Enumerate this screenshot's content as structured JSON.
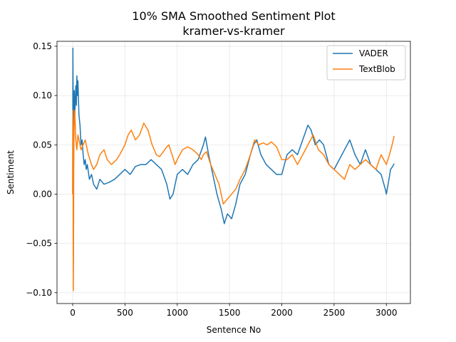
{
  "chart_data": {
    "type": "line",
    "title": "10% SMA Smoothed Sentiment Plot",
    "subtitle": "kramer-vs-kramer",
    "xlabel": "Sentence No",
    "ylabel": "Sentiment",
    "xlim": [
      -150,
      3230
    ],
    "ylim": [
      -0.111,
      0.155
    ],
    "xticks": [
      0,
      500,
      1000,
      1500,
      2000,
      2500,
      3000
    ],
    "xtick_labels": [
      "0",
      "500",
      "1000",
      "1500",
      "2000",
      "2500",
      "3000"
    ],
    "yticks": [
      -0.1,
      -0.05,
      0.0,
      0.05,
      0.1,
      0.15
    ],
    "ytick_labels": [
      "−0.10",
      "−0.05",
      "0.00",
      "0.05",
      "0.10",
      "0.15"
    ],
    "grid": true,
    "legend_position": "upper right",
    "series": [
      {
        "name": "VADER",
        "color": "#1f77b4",
        "points": [
          [
            0,
            0.0
          ],
          [
            2,
            0.148
          ],
          [
            5,
            0.09
          ],
          [
            8,
            0.02
          ],
          [
            11,
            0.065
          ],
          [
            15,
            0.105
          ],
          [
            20,
            0.08
          ],
          [
            25,
            0.095
          ],
          [
            30,
            0.11
          ],
          [
            35,
            0.09
          ],
          [
            40,
            0.12
          ],
          [
            45,
            0.1
          ],
          [
            50,
            0.115
          ],
          [
            60,
            0.08
          ],
          [
            70,
            0.07
          ],
          [
            80,
            0.05
          ],
          [
            90,
            0.055
          ],
          [
            100,
            0.04
          ],
          [
            110,
            0.03
          ],
          [
            120,
            0.035
          ],
          [
            130,
            0.025
          ],
          [
            140,
            0.03
          ],
          [
            160,
            0.015
          ],
          [
            180,
            0.02
          ],
          [
            200,
            0.01
          ],
          [
            230,
            0.005
          ],
          [
            260,
            0.015
          ],
          [
            300,
            0.01
          ],
          [
            350,
            0.012
          ],
          [
            400,
            0.015
          ],
          [
            450,
            0.02
          ],
          [
            500,
            0.025
          ],
          [
            550,
            0.02
          ],
          [
            600,
            0.028
          ],
          [
            650,
            0.03
          ],
          [
            700,
            0.03
          ],
          [
            750,
            0.035
          ],
          [
            800,
            0.03
          ],
          [
            850,
            0.025
          ],
          [
            900,
            0.01
          ],
          [
            930,
            -0.005
          ],
          [
            960,
            0.0
          ],
          [
            1000,
            0.02
          ],
          [
            1050,
            0.025
          ],
          [
            1100,
            0.02
          ],
          [
            1150,
            0.03
          ],
          [
            1200,
            0.035
          ],
          [
            1250,
            0.05
          ],
          [
            1270,
            0.058
          ],
          [
            1300,
            0.04
          ],
          [
            1340,
            0.02
          ],
          [
            1380,
            0.0
          ],
          [
            1420,
            -0.015
          ],
          [
            1450,
            -0.03
          ],
          [
            1480,
            -0.02
          ],
          [
            1520,
            -0.025
          ],
          [
            1560,
            -0.01
          ],
          [
            1600,
            0.01
          ],
          [
            1650,
            0.02
          ],
          [
            1700,
            0.04
          ],
          [
            1730,
            0.05
          ],
          [
            1760,
            0.055
          ],
          [
            1800,
            0.04
          ],
          [
            1850,
            0.03
          ],
          [
            1900,
            0.025
          ],
          [
            1950,
            0.02
          ],
          [
            2000,
            0.02
          ],
          [
            2050,
            0.04
          ],
          [
            2100,
            0.045
          ],
          [
            2150,
            0.04
          ],
          [
            2200,
            0.055
          ],
          [
            2250,
            0.07
          ],
          [
            2280,
            0.065
          ],
          [
            2320,
            0.05
          ],
          [
            2360,
            0.055
          ],
          [
            2400,
            0.05
          ],
          [
            2450,
            0.03
          ],
          [
            2500,
            0.025
          ],
          [
            2550,
            0.035
          ],
          [
            2600,
            0.045
          ],
          [
            2650,
            0.055
          ],
          [
            2700,
            0.04
          ],
          [
            2750,
            0.03
          ],
          [
            2800,
            0.045
          ],
          [
            2850,
            0.03
          ],
          [
            2900,
            0.025
          ],
          [
            2950,
            0.02
          ],
          [
            2990,
            0.005
          ],
          [
            3000,
            0.0
          ],
          [
            3020,
            0.012
          ],
          [
            3040,
            0.025
          ],
          [
            3060,
            0.028
          ],
          [
            3075,
            0.031
          ]
        ]
      },
      {
        "name": "TextBlob",
        "color": "#ff7f0e",
        "points": [
          [
            0,
            0.0
          ],
          [
            2,
            0.085
          ],
          [
            4,
            0.03
          ],
          [
            6,
            -0.098
          ],
          [
            8,
            -0.06
          ],
          [
            10,
            0.02
          ],
          [
            12,
            0.055
          ],
          [
            15,
            0.075
          ],
          [
            20,
            0.085
          ],
          [
            25,
            0.07
          ],
          [
            30,
            0.055
          ],
          [
            40,
            0.045
          ],
          [
            50,
            0.06
          ],
          [
            60,
            0.055
          ],
          [
            80,
            0.045
          ],
          [
            100,
            0.05
          ],
          [
            120,
            0.055
          ],
          [
            150,
            0.04
          ],
          [
            180,
            0.03
          ],
          [
            200,
            0.025
          ],
          [
            230,
            0.03
          ],
          [
            260,
            0.04
          ],
          [
            300,
            0.045
          ],
          [
            330,
            0.035
          ],
          [
            370,
            0.03
          ],
          [
            420,
            0.035
          ],
          [
            450,
            0.04
          ],
          [
            500,
            0.05
          ],
          [
            530,
            0.06
          ],
          [
            560,
            0.065
          ],
          [
            600,
            0.055
          ],
          [
            640,
            0.06
          ],
          [
            680,
            0.072
          ],
          [
            720,
            0.065
          ],
          [
            760,
            0.05
          ],
          [
            800,
            0.04
          ],
          [
            830,
            0.038
          ],
          [
            860,
            0.042
          ],
          [
            900,
            0.048
          ],
          [
            920,
            0.05
          ],
          [
            950,
            0.04
          ],
          [
            980,
            0.03
          ],
          [
            1000,
            0.035
          ],
          [
            1050,
            0.045
          ],
          [
            1100,
            0.048
          ],
          [
            1150,
            0.045
          ],
          [
            1200,
            0.04
          ],
          [
            1230,
            0.035
          ],
          [
            1250,
            0.04
          ],
          [
            1280,
            0.043
          ],
          [
            1320,
            0.03
          ],
          [
            1360,
            0.02
          ],
          [
            1400,
            0.01
          ],
          [
            1440,
            -0.01
          ],
          [
            1480,
            -0.005
          ],
          [
            1520,
            0.0
          ],
          [
            1560,
            0.005
          ],
          [
            1600,
            0.015
          ],
          [
            1650,
            0.025
          ],
          [
            1700,
            0.04
          ],
          [
            1740,
            0.055
          ],
          [
            1780,
            0.05
          ],
          [
            1820,
            0.052
          ],
          [
            1860,
            0.05
          ],
          [
            1900,
            0.053
          ],
          [
            1950,
            0.048
          ],
          [
            2000,
            0.035
          ],
          [
            2050,
            0.035
          ],
          [
            2100,
            0.04
          ],
          [
            2150,
            0.03
          ],
          [
            2200,
            0.04
          ],
          [
            2250,
            0.05
          ],
          [
            2300,
            0.06
          ],
          [
            2350,
            0.045
          ],
          [
            2400,
            0.04
          ],
          [
            2450,
            0.03
          ],
          [
            2500,
            0.025
          ],
          [
            2550,
            0.02
          ],
          [
            2600,
            0.015
          ],
          [
            2650,
            0.03
          ],
          [
            2700,
            0.025
          ],
          [
            2750,
            0.03
          ],
          [
            2800,
            0.035
          ],
          [
            2850,
            0.03
          ],
          [
            2900,
            0.025
          ],
          [
            2950,
            0.04
          ],
          [
            3000,
            0.03
          ],
          [
            3030,
            0.04
          ],
          [
            3055,
            0.05
          ],
          [
            3075,
            0.059
          ]
        ]
      }
    ]
  }
}
